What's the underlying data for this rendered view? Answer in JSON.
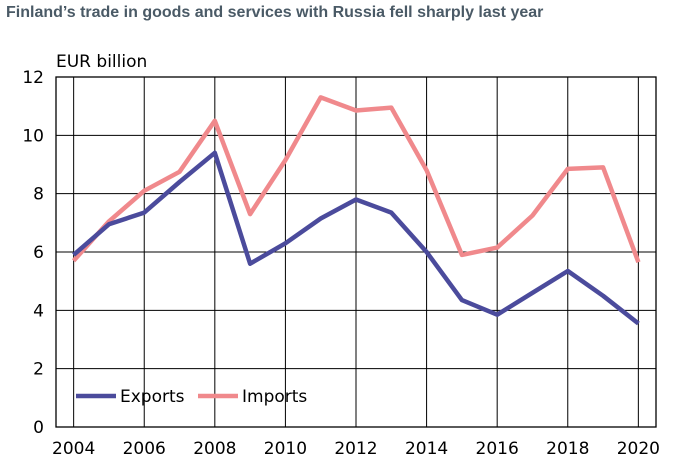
{
  "title": "Finland’s trade in goods and services with Russia fell sharply last year",
  "chart_data": {
    "type": "line",
    "title": "Finland’s trade in goods and services with Russia fell sharply last year",
    "ylabel": "EUR billion",
    "xlabel": "",
    "x": [
      2004,
      2005,
      2006,
      2007,
      2008,
      2009,
      2010,
      2011,
      2012,
      2013,
      2014,
      2015,
      2016,
      2017,
      2018,
      2019,
      2020
    ],
    "xlim": [
      2003.5,
      2020.5
    ],
    "xticks": [
      "2004",
      "2006",
      "2008",
      "2010",
      "2012",
      "2014",
      "2016",
      "2018",
      "2020"
    ],
    "ylim": [
      0,
      12
    ],
    "yticks": [
      "0",
      "2",
      "4",
      "6",
      "8",
      "10",
      "12"
    ],
    "grid": true,
    "legend_position": "bottom-left",
    "series": [
      {
        "name": "Exports",
        "color": "#4b4b9c",
        "values": [
          5.9,
          6.95,
          7.35,
          8.4,
          9.4,
          5.6,
          6.3,
          7.15,
          7.8,
          7.35,
          6.0,
          4.35,
          3.85,
          4.6,
          5.35,
          4.5,
          3.55
        ]
      },
      {
        "name": "Imports",
        "color": "#f0898c",
        "values": [
          5.7,
          7.05,
          8.1,
          8.75,
          10.5,
          7.3,
          9.15,
          11.3,
          10.85,
          10.95,
          8.8,
          5.9,
          6.15,
          7.25,
          8.85,
          8.9,
          5.65
        ]
      }
    ]
  }
}
